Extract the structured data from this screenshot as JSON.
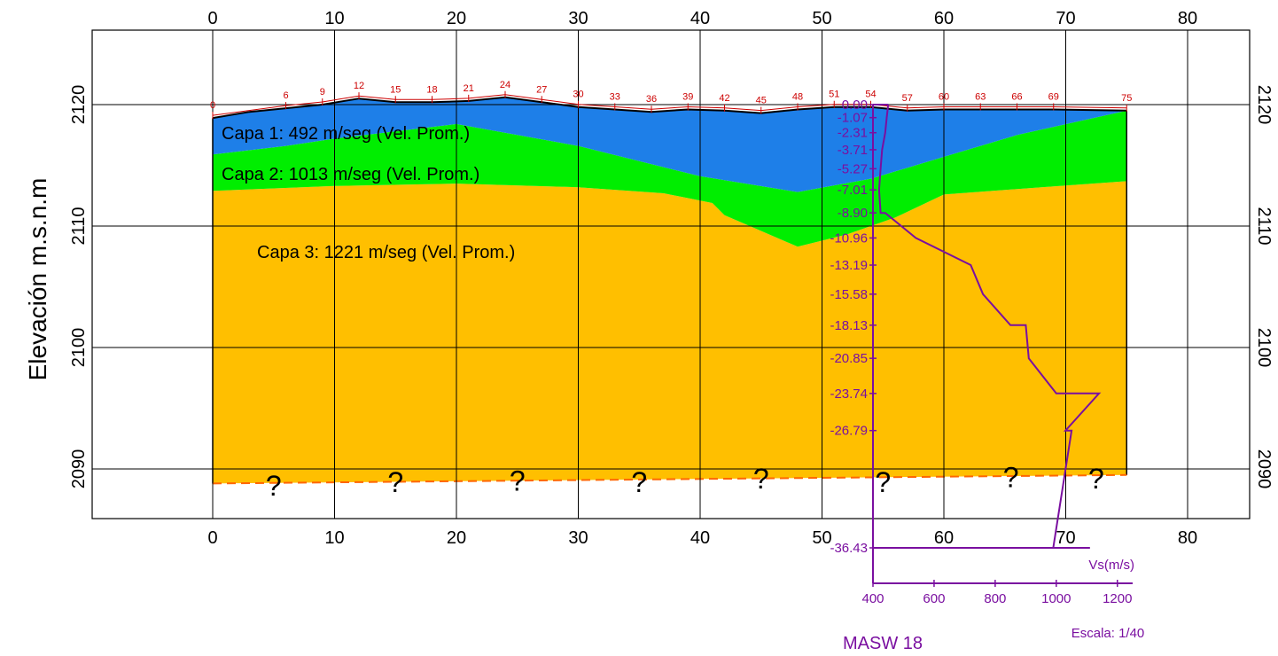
{
  "chart_data": {
    "type": "area",
    "x_ticks": [
      0,
      10,
      20,
      30,
      40,
      50,
      60,
      70,
      80
    ],
    "y_ticks": [
      2120,
      2110,
      2100,
      2090
    ],
    "xlim": [
      -10,
      85
    ],
    "ylim": [
      2086,
      2126
    ],
    "ylabel": "Elevación m.s.n.m",
    "grid": true,
    "colors": {
      "capa1": "#1e7fe8",
      "capa2": "#00ee00",
      "capa3": "#ffbf00",
      "topo": "#cc0000",
      "masw": "#7a0fa0",
      "bottom_dash": "#ff6600"
    },
    "geophone_labels": [
      "0",
      "6",
      "9",
      "12",
      "15",
      "18",
      "21",
      "24",
      "27",
      "30",
      "33",
      "36",
      "39",
      "42",
      "45",
      "48",
      "51",
      "54",
      "57",
      "60",
      "63",
      "66",
      "69",
      "75"
    ],
    "geophone_x": [
      0,
      6,
      9,
      12,
      15,
      18,
      21,
      24,
      27,
      30,
      33,
      36,
      39,
      42,
      45,
      48,
      51,
      54,
      57,
      60,
      63,
      66,
      69,
      75
    ],
    "surface": {
      "x": [
        0,
        3,
        6,
        9,
        12,
        15,
        18,
        21,
        24,
        27,
        30,
        33,
        36,
        39,
        42,
        45,
        48,
        51,
        54,
        57,
        60,
        63,
        66,
        69,
        75
      ],
      "y": [
        2118.9,
        2119.4,
        2119.7,
        2120.0,
        2120.5,
        2120.2,
        2120.2,
        2120.3,
        2120.6,
        2120.2,
        2119.8,
        2119.6,
        2119.4,
        2119.6,
        2119.5,
        2119.3,
        2119.6,
        2119.8,
        2119.8,
        2119.5,
        2119.6,
        2119.6,
        2119.6,
        2119.6,
        2119.5
      ]
    },
    "layer1_bottom": {
      "x": [
        0,
        6,
        10,
        20,
        30,
        40,
        48,
        54,
        60,
        66,
        75
      ],
      "y": [
        2115.9,
        2116.6,
        2117.2,
        2118.4,
        2116.6,
        2114.1,
        2112.8,
        2113.9,
        2115.7,
        2117.5,
        2119.5
      ]
    },
    "layer2_bottom": {
      "x": [
        0,
        10,
        20,
        30,
        37,
        41,
        42,
        48,
        52,
        56,
        60,
        68,
        75
      ],
      "y": [
        2112.9,
        2113.3,
        2113.5,
        2113.2,
        2112.7,
        2111.9,
        2110.9,
        2108.3,
        2109.3,
        2110.7,
        2112.6,
        2113.2,
        2113.7
      ]
    },
    "section_bottom": {
      "x": [
        0,
        75
      ],
      "y": [
        2088.8,
        2089.5
      ]
    },
    "layers": [
      {
        "name": "Capa 1",
        "label": "Capa 1: 492 m/seg (Vel. Prom.)",
        "velocity": 492
      },
      {
        "name": "Capa 2",
        "label": "Capa 2: 1013 m/seg (Vel. Prom.)",
        "velocity": 1013
      },
      {
        "name": "Capa 3",
        "label": "Capa 3: 1221 m/seg (Vel. Prom.)",
        "velocity": 1221
      }
    ],
    "unknown_marks": [
      {
        "x": 5,
        "y": 2089.4
      },
      {
        "x": 15,
        "y": 2089.7
      },
      {
        "x": 25,
        "y": 2089.8
      },
      {
        "x": 35,
        "y": 2089.7
      },
      {
        "x": 45,
        "y": 2090.0
      },
      {
        "x": 55,
        "y": 2089.7
      },
      {
        "x": 65.5,
        "y": 2090.1
      },
      {
        "x": 72.5,
        "y": 2090.0
      }
    ],
    "unknown_symbol": "?",
    "masw": {
      "name": "MASW 18",
      "axis_label": "Vs(m/s)",
      "scale": "Escala: 1/40",
      "x_ticks": [
        400,
        600,
        800,
        1000,
        1200
      ],
      "xlim": [
        400,
        1250
      ],
      "depth_labels": [
        "0.00",
        "-1.07",
        "-2.31",
        "-3.71",
        "-5.27",
        "-7.01",
        "-8.90",
        "-10.96",
        "-13.19",
        "-15.58",
        "-18.13",
        "-20.85",
        "-23.74",
        "-26.79",
        "-36.43"
      ],
      "depths": [
        0.0,
        -1.07,
        -2.31,
        -3.71,
        -5.27,
        -7.01,
        -8.9,
        -10.96,
        -13.19,
        -15.58,
        -18.13,
        -20.85,
        -23.74,
        -26.79,
        -36.43
      ],
      "profile": {
        "vs": [
          450,
          445,
          440,
          430,
          425,
          420,
          425,
          440,
          540,
          720,
          760,
          850,
          900,
          910,
          1000,
          1140,
          1030,
          1050,
          990,
          1110
        ],
        "depth": [
          0.0,
          -1.07,
          -2.31,
          -3.71,
          -5.27,
          -7.01,
          -8.9,
          -8.9,
          -10.96,
          -13.19,
          -15.58,
          -18.13,
          -18.13,
          -20.85,
          -23.74,
          -23.74,
          -26.79,
          -26.79,
          -36.43,
          -36.43
        ]
      }
    }
  }
}
